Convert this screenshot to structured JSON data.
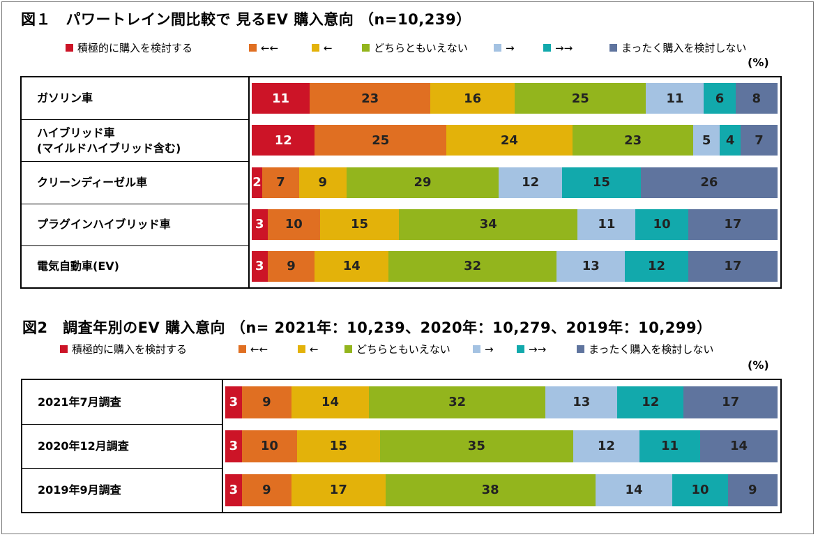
{
  "colors": [
    "#cc1427",
    "#e06f22",
    "#e3b20a",
    "#93b51d",
    "#a4c2e2",
    "#12a9ac",
    "#5f749e"
  ],
  "label_colors": [
    "#ffffff",
    "#222222",
    "#222222",
    "#222222",
    "#222222",
    "#222222",
    "#222222"
  ],
  "legend": [
    "積極的に購入を検討する",
    "←←",
    "←",
    "どちらともいえない",
    "→",
    "→→",
    "まったく購入を検討しない"
  ],
  "chart_data": [
    {
      "type": "bar",
      "orientation": "horizontal",
      "stacked": true,
      "title": "図１　パワートレイン間比較で 見るEV 購入意向 （n=10,239）",
      "unit": "(%)",
      "categories": [
        [
          "ガソリン車"
        ],
        [
          "ハイブリッド車",
          "(マイルドハイブリッド含む)"
        ],
        [
          "クリーンディーゼル車"
        ],
        [
          "プラグインハイブリッド車"
        ],
        [
          "電気自動車(EV)"
        ]
      ],
      "series": [
        {
          "name": "積極的に購入を検討する",
          "values": [
            11,
            12,
            2,
            3,
            3
          ]
        },
        {
          "name": "←←",
          "values": [
            23,
            25,
            7,
            10,
            9
          ]
        },
        {
          "name": "←",
          "values": [
            16,
            24,
            9,
            15,
            14
          ]
        },
        {
          "name": "どちらともいえない",
          "values": [
            25,
            23,
            29,
            34,
            32
          ]
        },
        {
          "name": "→",
          "values": [
            11,
            5,
            12,
            11,
            13
          ]
        },
        {
          "name": "→→",
          "values": [
            6,
            4,
            15,
            10,
            12
          ]
        },
        {
          "name": "まったく購入を検討しない",
          "values": [
            8,
            7,
            26,
            17,
            17
          ]
        }
      ]
    },
    {
      "type": "bar",
      "orientation": "horizontal",
      "stacked": true,
      "title": "図2　調査年別のEV 購入意向 （n= 2021年：10,239、2020年：10,279、2019年：10,299）",
      "unit": "(%)",
      "categories": [
        [
          "2021年7月調査"
        ],
        [
          "2020年12月調査"
        ],
        [
          "2019年9月調査"
        ]
      ],
      "series": [
        {
          "name": "積極的に購入を検討する",
          "values": [
            3,
            3,
            3
          ]
        },
        {
          "name": "←←",
          "values": [
            9,
            10,
            9
          ]
        },
        {
          "name": "←",
          "values": [
            14,
            15,
            17
          ]
        },
        {
          "name": "どちらともいえない",
          "values": [
            32,
            35,
            38
          ]
        },
        {
          "name": "→",
          "values": [
            13,
            12,
            14
          ]
        },
        {
          "name": "→→",
          "values": [
            12,
            11,
            10
          ]
        },
        {
          "name": "まったく購入を検討しない",
          "values": [
            17,
            14,
            9
          ]
        }
      ]
    }
  ]
}
